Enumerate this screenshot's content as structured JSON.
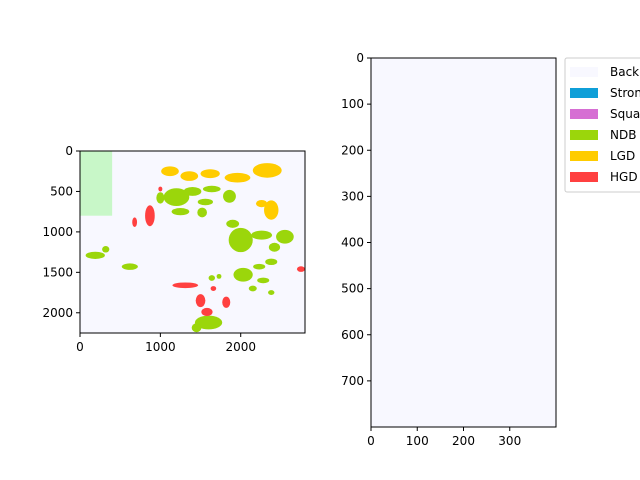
{
  "chart_data": [
    {
      "type": "image",
      "panel": "left",
      "image_extent": {
        "width": 2800,
        "height": 2250
      },
      "xlim": [
        0,
        2800
      ],
      "ylim": [
        2250,
        0
      ],
      "xticks": [
        0,
        1000,
        2000
      ],
      "yticks": [
        0,
        500,
        1000,
        1500,
        2000
      ],
      "background_color": "#f8f8ff",
      "highlight_region": {
        "x0": 0,
        "x1": 400,
        "y0": 0,
        "y1": 800,
        "color": "#c8f7c8"
      },
      "blobs": [
        {
          "class": "NDBE",
          "cx": 1200,
          "cy": 570,
          "rx": 160,
          "ry": 110
        },
        {
          "class": "NDBE",
          "cx": 1400,
          "cy": 500,
          "rx": 110,
          "ry": 55
        },
        {
          "class": "NDBE",
          "cx": 1640,
          "cy": 470,
          "rx": 110,
          "ry": 40
        },
        {
          "class": "NDBE",
          "cx": 1860,
          "cy": 560,
          "rx": 80,
          "ry": 80
        },
        {
          "class": "NDBE",
          "cx": 1560,
          "cy": 630,
          "rx": 95,
          "ry": 40
        },
        {
          "class": "NDBE",
          "cx": 1000,
          "cy": 580,
          "rx": 50,
          "ry": 70
        },
        {
          "class": "NDBE",
          "cx": 1250,
          "cy": 750,
          "rx": 110,
          "ry": 45
        },
        {
          "class": "NDBE",
          "cx": 1520,
          "cy": 760,
          "rx": 60,
          "ry": 60
        },
        {
          "class": "NDBE",
          "cx": 1900,
          "cy": 900,
          "rx": 80,
          "ry": 50
        },
        {
          "class": "NDBE",
          "cx": 2000,
          "cy": 1100,
          "rx": 150,
          "ry": 150
        },
        {
          "class": "NDBE",
          "cx": 2260,
          "cy": 1040,
          "rx": 130,
          "ry": 55
        },
        {
          "class": "NDBE",
          "cx": 2550,
          "cy": 1060,
          "rx": 110,
          "ry": 85
        },
        {
          "class": "NDBE",
          "cx": 2420,
          "cy": 1190,
          "rx": 70,
          "ry": 55
        },
        {
          "class": "NDBE",
          "cx": 2380,
          "cy": 1370,
          "rx": 75,
          "ry": 40
        },
        {
          "class": "NDBE",
          "cx": 2230,
          "cy": 1430,
          "rx": 75,
          "ry": 35
        },
        {
          "class": "NDBE",
          "cx": 2030,
          "cy": 1530,
          "rx": 120,
          "ry": 85
        },
        {
          "class": "NDBE",
          "cx": 2280,
          "cy": 1600,
          "rx": 75,
          "ry": 35
        },
        {
          "class": "NDBE",
          "cx": 2150,
          "cy": 1700,
          "rx": 50,
          "ry": 35
        },
        {
          "class": "NDBE",
          "cx": 2380,
          "cy": 1750,
          "rx": 40,
          "ry": 30
        },
        {
          "class": "NDBE",
          "cx": 1600,
          "cy": 2120,
          "rx": 170,
          "ry": 85
        },
        {
          "class": "NDBE",
          "cx": 1450,
          "cy": 2185,
          "rx": 60,
          "ry": 55
        },
        {
          "class": "NDBE",
          "cx": 190,
          "cy": 1290,
          "rx": 120,
          "ry": 45
        },
        {
          "class": "NDBE",
          "cx": 320,
          "cy": 1215,
          "rx": 45,
          "ry": 40
        },
        {
          "class": "NDBE",
          "cx": 620,
          "cy": 1430,
          "rx": 100,
          "ry": 40
        },
        {
          "class": "NDBE",
          "cx": 1640,
          "cy": 1570,
          "rx": 40,
          "ry": 35
        },
        {
          "class": "NDBE",
          "cx": 1730,
          "cy": 1550,
          "rx": 30,
          "ry": 30
        },
        {
          "class": "LGD",
          "cx": 1120,
          "cy": 250,
          "rx": 110,
          "ry": 60
        },
        {
          "class": "LGD",
          "cx": 1360,
          "cy": 310,
          "rx": 110,
          "ry": 60
        },
        {
          "class": "LGD",
          "cx": 1620,
          "cy": 280,
          "rx": 120,
          "ry": 55
        },
        {
          "class": "LGD",
          "cx": 1960,
          "cy": 330,
          "rx": 160,
          "ry": 60
        },
        {
          "class": "LGD",
          "cx": 2330,
          "cy": 240,
          "rx": 180,
          "ry": 90
        },
        {
          "class": "LGD",
          "cx": 2380,
          "cy": 730,
          "rx": 90,
          "ry": 120
        },
        {
          "class": "LGD",
          "cx": 2260,
          "cy": 650,
          "rx": 70,
          "ry": 45
        },
        {
          "class": "HGD",
          "cx": 870,
          "cy": 800,
          "rx": 60,
          "ry": 130
        },
        {
          "class": "HGD",
          "cx": 1000,
          "cy": 470,
          "rx": 25,
          "ry": 30
        },
        {
          "class": "HGD",
          "cx": 1310,
          "cy": 1660,
          "rx": 160,
          "ry": 35
        },
        {
          "class": "HGD",
          "cx": 1500,
          "cy": 1850,
          "rx": 60,
          "ry": 80
        },
        {
          "class": "HGD",
          "cx": 1820,
          "cy": 1870,
          "rx": 50,
          "ry": 70
        },
        {
          "class": "HGD",
          "cx": 1580,
          "cy": 1990,
          "rx": 70,
          "ry": 50
        },
        {
          "class": "HGD",
          "cx": 2750,
          "cy": 1460,
          "rx": 50,
          "ry": 35
        },
        {
          "class": "HGD",
          "cx": 680,
          "cy": 880,
          "rx": 30,
          "ry": 60
        },
        {
          "class": "HGD",
          "cx": 1660,
          "cy": 1700,
          "rx": 35,
          "ry": 30
        }
      ]
    },
    {
      "type": "image",
      "panel": "right",
      "image_extent": {
        "width": 400,
        "height": 800
      },
      "xlim": [
        0,
        400
      ],
      "ylim": [
        800,
        0
      ],
      "xticks": [
        0,
        100,
        200,
        300
      ],
      "yticks": [
        0,
        100,
        200,
        300,
        400,
        500,
        600,
        700
      ],
      "background_color": "#f8f8ff",
      "legend": {
        "placement": "right",
        "entries": [
          {
            "label": "Background",
            "visible_text": "Back",
            "color": "#f8f8ff"
          },
          {
            "label": "Stroma",
            "visible_text": "Stron",
            "color": "#0f9fd8"
          },
          {
            "label": "Squamous",
            "visible_text": "Squa",
            "color": "#d66ed3"
          },
          {
            "label": "NDBE",
            "visible_text": "NDB",
            "color": "#9bd60b"
          },
          {
            "label": "LGD",
            "visible_text": "LGD",
            "color": "#ffcc00"
          },
          {
            "label": "HGD",
            "visible_text": "HGD",
            "color": "#ff4040"
          }
        ]
      }
    }
  ],
  "colors": {
    "NDBE": "#9bd60b",
    "LGD": "#ffcc00",
    "HGD": "#ff4040"
  }
}
